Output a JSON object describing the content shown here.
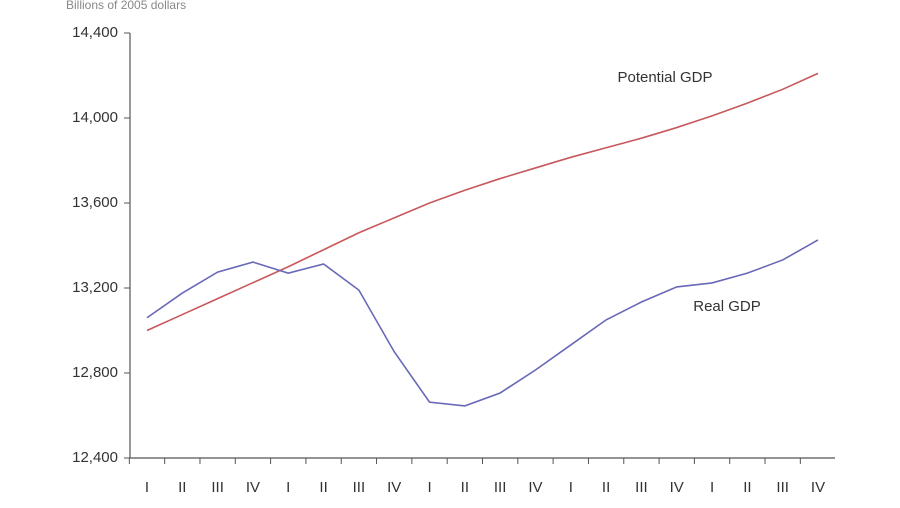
{
  "chart_data": {
    "type": "line",
    "y_label": "Billions of 2005 dollars",
    "categories": [
      "I",
      "II",
      "III",
      "IV",
      "I",
      "II",
      "III",
      "IV",
      "I",
      "II",
      "III",
      "IV",
      "I",
      "II",
      "III",
      "IV",
      "I",
      "II",
      "III",
      "IV"
    ],
    "series": [
      {
        "name": "Potential GDP",
        "color": "#c8585c",
        "values": [
          13000,
          13075,
          13150,
          13225,
          13300,
          13380,
          13460,
          13530,
          13600,
          13660,
          13715,
          13765,
          13815,
          13860,
          13905,
          13955,
          14010,
          14070,
          14135,
          14210
        ]
      },
      {
        "name": "Real GDP",
        "color": "#6868b8",
        "values": [
          13060,
          13176,
          13275,
          13322,
          13270,
          13313,
          13190,
          12900,
          12663,
          12645,
          12706,
          12814,
          12932,
          13050,
          13134,
          13205,
          13224,
          13270,
          13332,
          13426
        ]
      }
    ],
    "ylim": [
      12400,
      14400
    ],
    "yticks": [
      {
        "value": 12400,
        "label": "12,400"
      },
      {
        "value": 12800,
        "label": "12,800"
      },
      {
        "value": 13200,
        "label": "13,200"
      },
      {
        "value": 13600,
        "label": "13,600"
      },
      {
        "value": 14000,
        "label": "14,000"
      },
      {
        "value": 14400,
        "label": "14,400"
      }
    ],
    "grid": false
  }
}
